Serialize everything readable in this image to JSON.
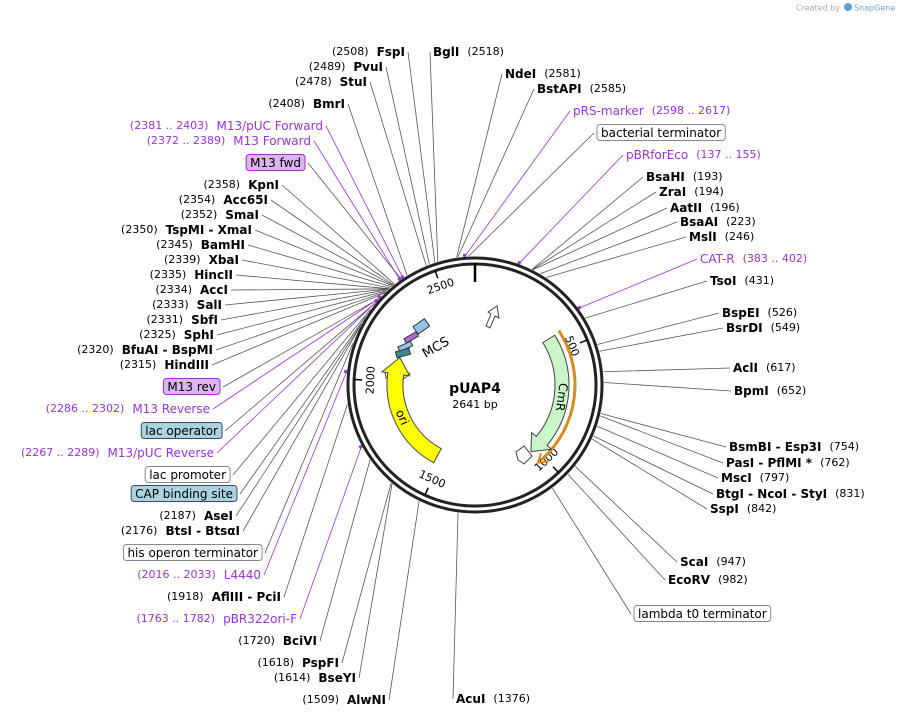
{
  "credit": "Created by",
  "brand": "SnapGene",
  "plasmid": {
    "name": "pUAP4",
    "length": "2641 bp"
  },
  "ring_ticks": [
    "500",
    "1000",
    "1500",
    "2000",
    "2500"
  ],
  "inner_features": [
    "CmR",
    "ori",
    "MCS"
  ],
  "right_labels": [
    {
      "name": "BglI",
      "position": "(2518)"
    },
    {
      "name": "NdeI",
      "position": "(2581)"
    },
    {
      "name": "BstAPI",
      "position": "(2585)"
    },
    {
      "primer": "pRS-marker",
      "range": "(2598 .. 2617)"
    },
    {
      "feature": "bacterial terminator"
    },
    {
      "primer": "pBRforEco",
      "range": "(137 .. 155)"
    },
    {
      "name": "BsaHI",
      "position": "(193)"
    },
    {
      "name": "ZraI",
      "position": "(194)"
    },
    {
      "name": "AatII",
      "position": "(196)"
    },
    {
      "name": "BsaAI",
      "position": "(223)"
    },
    {
      "name": "MslI",
      "position": "(246)"
    },
    {
      "primer": "CAT-R",
      "range": "(383 .. 402)"
    },
    {
      "name": "TsoI",
      "position": "(431)"
    },
    {
      "name": "BspEI",
      "position": "(526)"
    },
    {
      "name": "BsrDI",
      "position": "(549)"
    },
    {
      "name": "AclI",
      "position": "(617)"
    },
    {
      "name": "BpmI",
      "position": "(652)"
    },
    {
      "name": "BsmBI - Esp3I",
      "position": "(754)"
    },
    {
      "name": "PasI - PflMI *",
      "position": "(762)"
    },
    {
      "name": "MscI",
      "position": "(797)"
    },
    {
      "name": "BtgI - NcoI - StyI",
      "position": "(831)"
    },
    {
      "name": "SspI",
      "position": "(842)"
    },
    {
      "name": "ScaI",
      "position": "(947)"
    },
    {
      "name": "EcoRV",
      "position": "(982)"
    },
    {
      "feature": "lambda t0 terminator"
    },
    {
      "name": "AcuI",
      "position": "(1376)"
    }
  ],
  "left_labels": [
    {
      "position": "(2508)",
      "name": "FspI"
    },
    {
      "position": "(2489)",
      "name": "PvuI"
    },
    {
      "position": "(2478)",
      "name": "StuI"
    },
    {
      "position": "(2408)",
      "name": "BmrI"
    },
    {
      "range": "(2381 .. 2403)",
      "primer": "M13/pUC Forward"
    },
    {
      "range": "(2372 .. 2389)",
      "primer": "M13 Forward"
    },
    {
      "feature": "M13 fwd"
    },
    {
      "position": "(2358)",
      "name": "KpnI"
    },
    {
      "position": "(2354)",
      "name": "Acc65I"
    },
    {
      "position": "(2352)",
      "name": "SmaI"
    },
    {
      "position": "(2350)",
      "name": "TspMI - XmaI"
    },
    {
      "position": "(2345)",
      "name": "BamHI"
    },
    {
      "position": "(2339)",
      "name": "XbaI"
    },
    {
      "position": "(2335)",
      "name": "HincII"
    },
    {
      "position": "(2334)",
      "name": "AccI"
    },
    {
      "position": "(2333)",
      "name": "SalI"
    },
    {
      "position": "(2331)",
      "name": "SbfI"
    },
    {
      "position": "(2325)",
      "name": "SphI"
    },
    {
      "position": "(2320)",
      "name": "BfuAI - BspMI"
    },
    {
      "position": "(2315)",
      "name": "HindIII"
    },
    {
      "feature": "M13 rev"
    },
    {
      "range": "(2286 .. 2302)",
      "primer": "M13 Reverse"
    },
    {
      "feature": "lac operator"
    },
    {
      "range": "(2267 .. 2289)",
      "primer": "M13/pUC Reverse"
    },
    {
      "feature": "lac promoter"
    },
    {
      "feature": "CAP binding site"
    },
    {
      "position": "(2187)",
      "name": "AseI"
    },
    {
      "position": "(2176)",
      "name": "BtsI - BtsαI"
    },
    {
      "feature": "his operon terminator"
    },
    {
      "range": "(2016 .. 2033)",
      "primer": "L4440"
    },
    {
      "position": "(1918)",
      "name": "AflIII - PciI"
    },
    {
      "range": "(1763 .. 1782)",
      "primer": "pBR322ori-F"
    },
    {
      "position": "(1720)",
      "name": "BciVI"
    },
    {
      "position": "(1618)",
      "name": "PspFI"
    },
    {
      "position": "(1614)",
      "name": "BseYI"
    },
    {
      "position": "(1509)",
      "name": "AlwNI"
    }
  ]
}
